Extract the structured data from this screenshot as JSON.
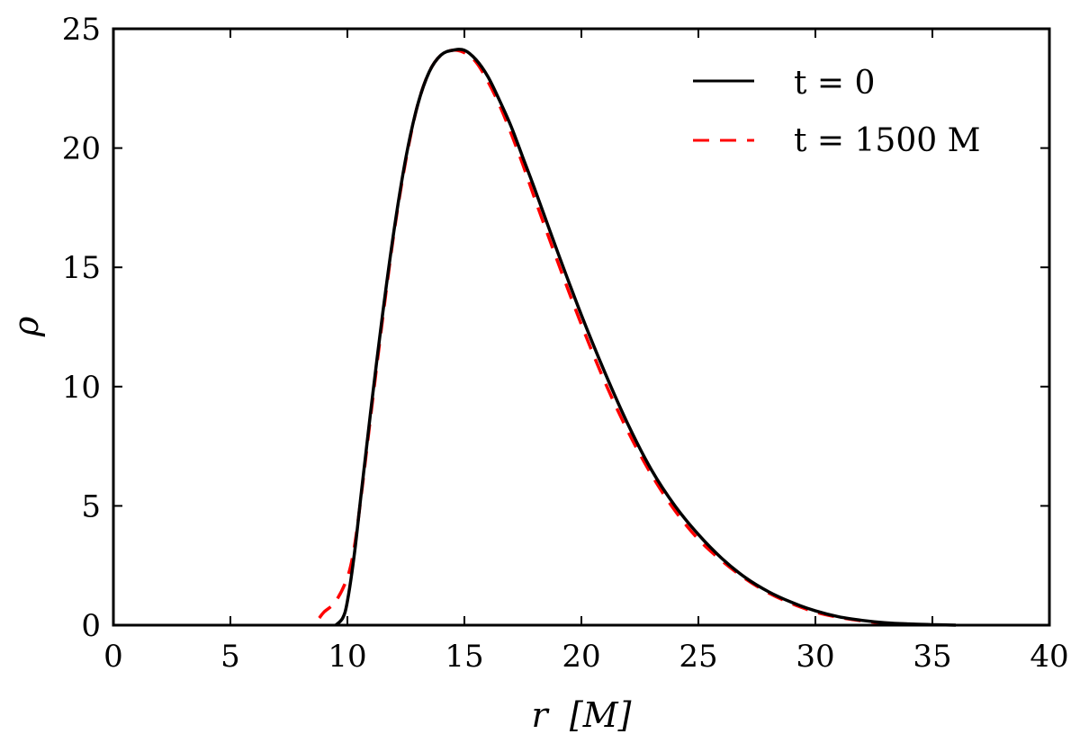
{
  "chart_data": {
    "type": "line",
    "xlabel": "r  [M]",
    "ylabel": "ρ",
    "xlim": [
      0,
      40
    ],
    "ylim": [
      0,
      25
    ],
    "xticks": [
      0,
      5,
      10,
      15,
      20,
      25,
      30,
      35,
      40
    ],
    "yticks": [
      0,
      5,
      10,
      15,
      20,
      25
    ],
    "grid": false,
    "legend_position": "top-right",
    "series": [
      {
        "name": "t = 0",
        "color": "#000000",
        "dash": "solid",
        "x": [
          9.5,
          9.8,
          10.0,
          10.3,
          10.6,
          11.0,
          11.5,
          12.0,
          12.5,
          13.0,
          13.5,
          14.0,
          14.5,
          15.0,
          15.5,
          16.0,
          16.5,
          17.0,
          17.5,
          18.0,
          19.0,
          20.0,
          21.0,
          22.0,
          23.0,
          24.0,
          25.0,
          26.0,
          27.0,
          28.0,
          29.0,
          30.0,
          31.0,
          32.0,
          33.0,
          34.0,
          35.0,
          36.0
        ],
        "y": [
          0.0,
          0.3,
          1.0,
          3.0,
          5.6,
          9.0,
          13.0,
          16.6,
          19.6,
          21.8,
          23.2,
          23.9,
          24.1,
          24.1,
          23.7,
          23.0,
          22.0,
          20.9,
          19.6,
          18.3,
          15.6,
          13.0,
          10.6,
          8.4,
          6.5,
          5.0,
          3.8,
          2.8,
          2.0,
          1.4,
          0.95,
          0.6,
          0.35,
          0.2,
          0.1,
          0.05,
          0.02,
          0.0
        ]
      },
      {
        "name": "t = 1500 M",
        "color": "#ff0000",
        "dash": "dashed",
        "x": [
          8.8,
          9.0,
          9.5,
          10.0,
          10.3,
          10.6,
          11.0,
          11.5,
          12.0,
          12.5,
          13.0,
          13.5,
          14.0,
          14.5,
          15.0,
          15.5,
          16.0,
          16.5,
          17.0,
          17.5,
          18.0,
          19.0,
          20.0,
          21.0,
          22.0,
          23.0,
          24.0,
          25.0,
          26.0,
          27.0,
          28.0,
          29.0,
          30.0,
          31.0,
          32.0,
          33.0,
          34.0,
          34.7
        ],
        "y": [
          0.3,
          0.55,
          1.0,
          2.0,
          3.3,
          5.5,
          8.8,
          12.8,
          16.5,
          19.5,
          21.8,
          23.2,
          23.9,
          24.1,
          24.0,
          23.6,
          22.8,
          21.8,
          20.6,
          19.3,
          17.9,
          15.2,
          12.6,
          10.2,
          8.1,
          6.3,
          4.8,
          3.6,
          2.7,
          1.95,
          1.35,
          0.9,
          0.55,
          0.33,
          0.18,
          0.09,
          0.04,
          0.02
        ]
      }
    ]
  }
}
